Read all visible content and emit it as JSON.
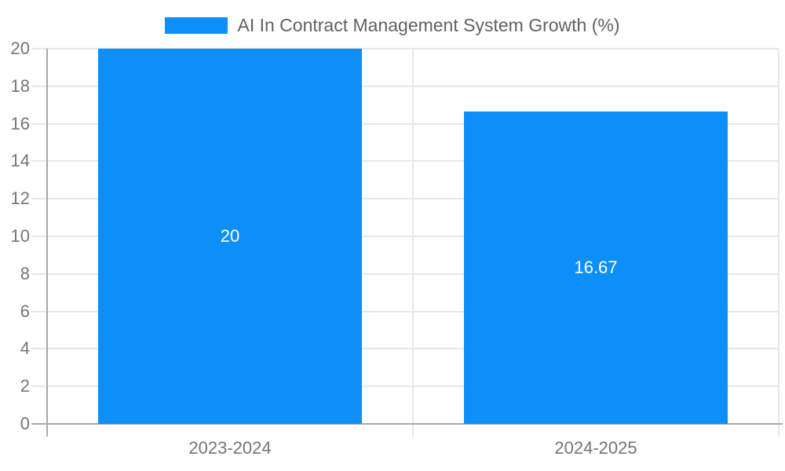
{
  "chart_data": {
    "type": "bar",
    "title": "",
    "legend_label": "AI In Contract Management System Growth (%)",
    "legend_position": "top-center",
    "categories": [
      "2023-2024",
      "2024-2025"
    ],
    "values": [
      20,
      16.67
    ],
    "bar_value_labels": [
      "20",
      "16.67"
    ],
    "xlabel": "",
    "ylabel": "",
    "ylim": [
      0,
      20
    ],
    "yticks": [
      0,
      2,
      4,
      6,
      8,
      10,
      12,
      14,
      16,
      18,
      20
    ],
    "grid": "horizontal gridlines on, vertical divider between categories and at right plot edge",
    "bar_label_placement": "centered inside bar, white text"
  },
  "colors": {
    "accent": "#0d8ff9",
    "gridline": "#e7e7e7",
    "axis_line": "#a9a9a9",
    "tick_label": "#757575",
    "legend_text": "#616161",
    "bar_value_text": "#ffffff",
    "background": "#ffffff"
  }
}
